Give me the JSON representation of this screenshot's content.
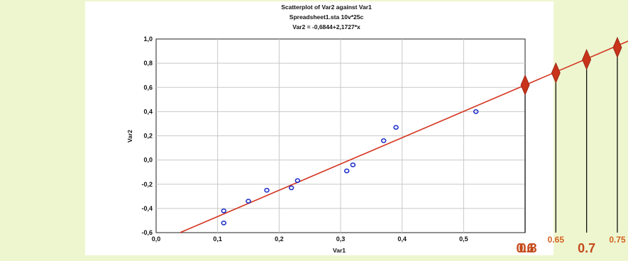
{
  "chart_data": {
    "type": "scatter",
    "title": "Scatterplot of Var2 against Var1",
    "subtitle": "Spreadsheet1.sta 10v*25c",
    "equation": "Var2 = -0,6844+2,1727*x",
    "xlabel": "Var1",
    "ylabel": "Var2",
    "xlim": [
      0.0,
      0.6
    ],
    "ylim": [
      -0.6,
      1.0
    ],
    "x_ticks": [
      "0,0",
      "0,1",
      "0,2",
      "0,3",
      "0,4",
      "0,5"
    ],
    "y_ticks": [
      "-0,6",
      "-0,4",
      "-0,2",
      "0,0",
      "0,2",
      "0,4",
      "0,6",
      "0,8",
      "1,0"
    ],
    "grid": true,
    "points": [
      {
        "x": 0.11,
        "y": -0.42
      },
      {
        "x": 0.11,
        "y": -0.52
      },
      {
        "x": 0.15,
        "y": -0.34
      },
      {
        "x": 0.18,
        "y": -0.25
      },
      {
        "x": 0.22,
        "y": -0.23
      },
      {
        "x": 0.23,
        "y": -0.17
      },
      {
        "x": 0.31,
        "y": -0.09
      },
      {
        "x": 0.32,
        "y": -0.04
      },
      {
        "x": 0.37,
        "y": 0.16
      },
      {
        "x": 0.39,
        "y": 0.27
      },
      {
        "x": 0.52,
        "y": 0.4
      }
    ],
    "fit_line": {
      "intercept": -0.6844,
      "slope": 2.1727
    },
    "extrapolations": [
      {
        "x": 0.6,
        "y": 0.62,
        "label": "0.6"
      },
      {
        "x": 0.65,
        "y": 0.72,
        "label": "0.65"
      },
      {
        "x": 0.7,
        "y": 0.83,
        "label": "0.7"
      },
      {
        "x": 0.75,
        "y": 0.93,
        "label": "0.75"
      }
    ],
    "extra_axis_label": "0.8"
  }
}
